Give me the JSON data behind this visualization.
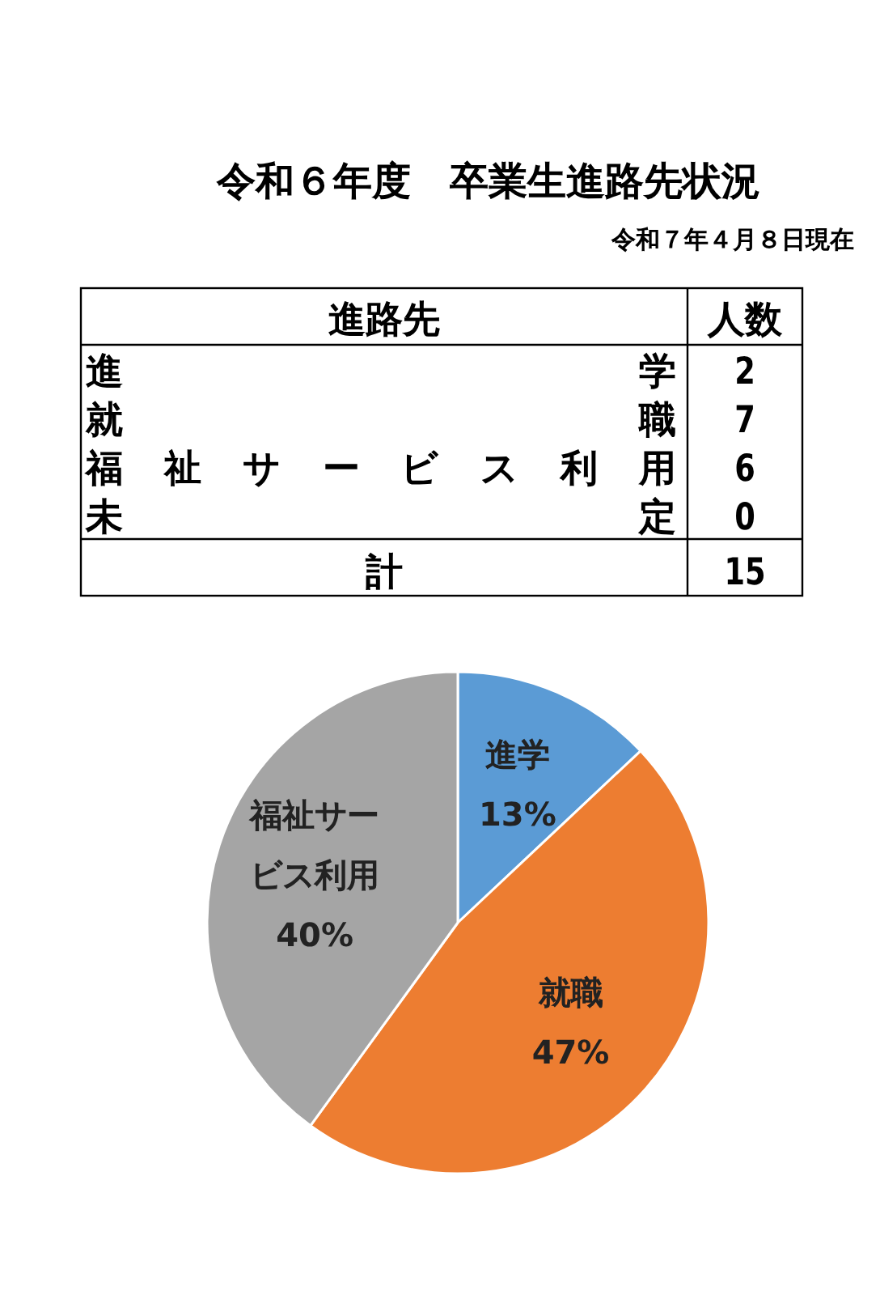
{
  "chart_data": {
    "type": "pie",
    "title": "令和６年度　卒業生進路先状況",
    "subtitle": "令和７年４月８日現在",
    "categories": [
      "進学",
      "就職",
      "福祉サービス利用",
      "未定"
    ],
    "values": [
      13,
      47,
      40,
      0
    ],
    "colors": [
      "#5b9bd5",
      "#ed7d31",
      "#a5a5a5",
      "#ffc000"
    ],
    "value_labels": [
      "13%",
      "47%",
      "40%",
      null
    ],
    "annotations": [
      "進路先",
      "人数",
      "2",
      "7",
      "6",
      "0",
      "計",
      "15"
    ]
  }
}
